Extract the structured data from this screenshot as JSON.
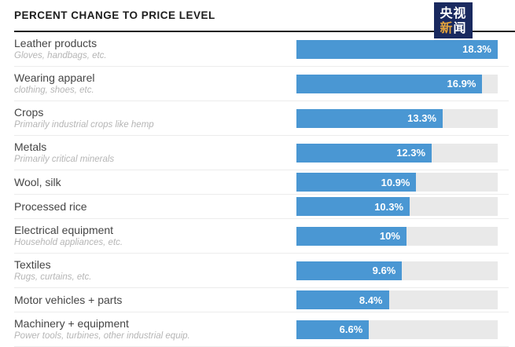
{
  "header": {
    "title": "PERCENT CHANGE TO PRICE LEVEL"
  },
  "logo": {
    "row1": "央视",
    "row2_first": "新",
    "row2_second": "闻",
    "background_color": "#19295f",
    "accent_color": "#e2a23c"
  },
  "chart_data": {
    "type": "bar",
    "orientation": "horizontal",
    "title": "PERCENT CHANGE TO PRICE LEVEL",
    "categories": [
      "Leather products",
      "Wearing apparel",
      "Crops",
      "Metals",
      "Wool, silk",
      "Processed rice",
      "Electrical equipment",
      "Textiles",
      "Motor vehicles + parts",
      "Machinery + equipment"
    ],
    "category_descriptions": [
      "Gloves, handbags, etc.",
      "clothing, shoes, etc.",
      "Primarily industrial crops like hemp",
      "Primarily critical minerals",
      "",
      "",
      "Household appliances, etc.",
      "Rugs, curtains, etc.",
      "",
      "Power tools, turbines, other industrial equip."
    ],
    "values": [
      18.3,
      16.9,
      13.3,
      12.3,
      10.9,
      10.3,
      10,
      9.6,
      8.4,
      6.6
    ],
    "value_labels": [
      "18.3%",
      "16.9%",
      "13.3%",
      "12.3%",
      "10.9%",
      "10.3%",
      "10%",
      "9.6%",
      "8.4%",
      "6.6%"
    ],
    "xlim": [
      0,
      18.3
    ],
    "bar_color": "#4a97d3",
    "track_color": "#e9e9e9",
    "value_label_position": "inside-right",
    "grid": false,
    "legend": false
  }
}
